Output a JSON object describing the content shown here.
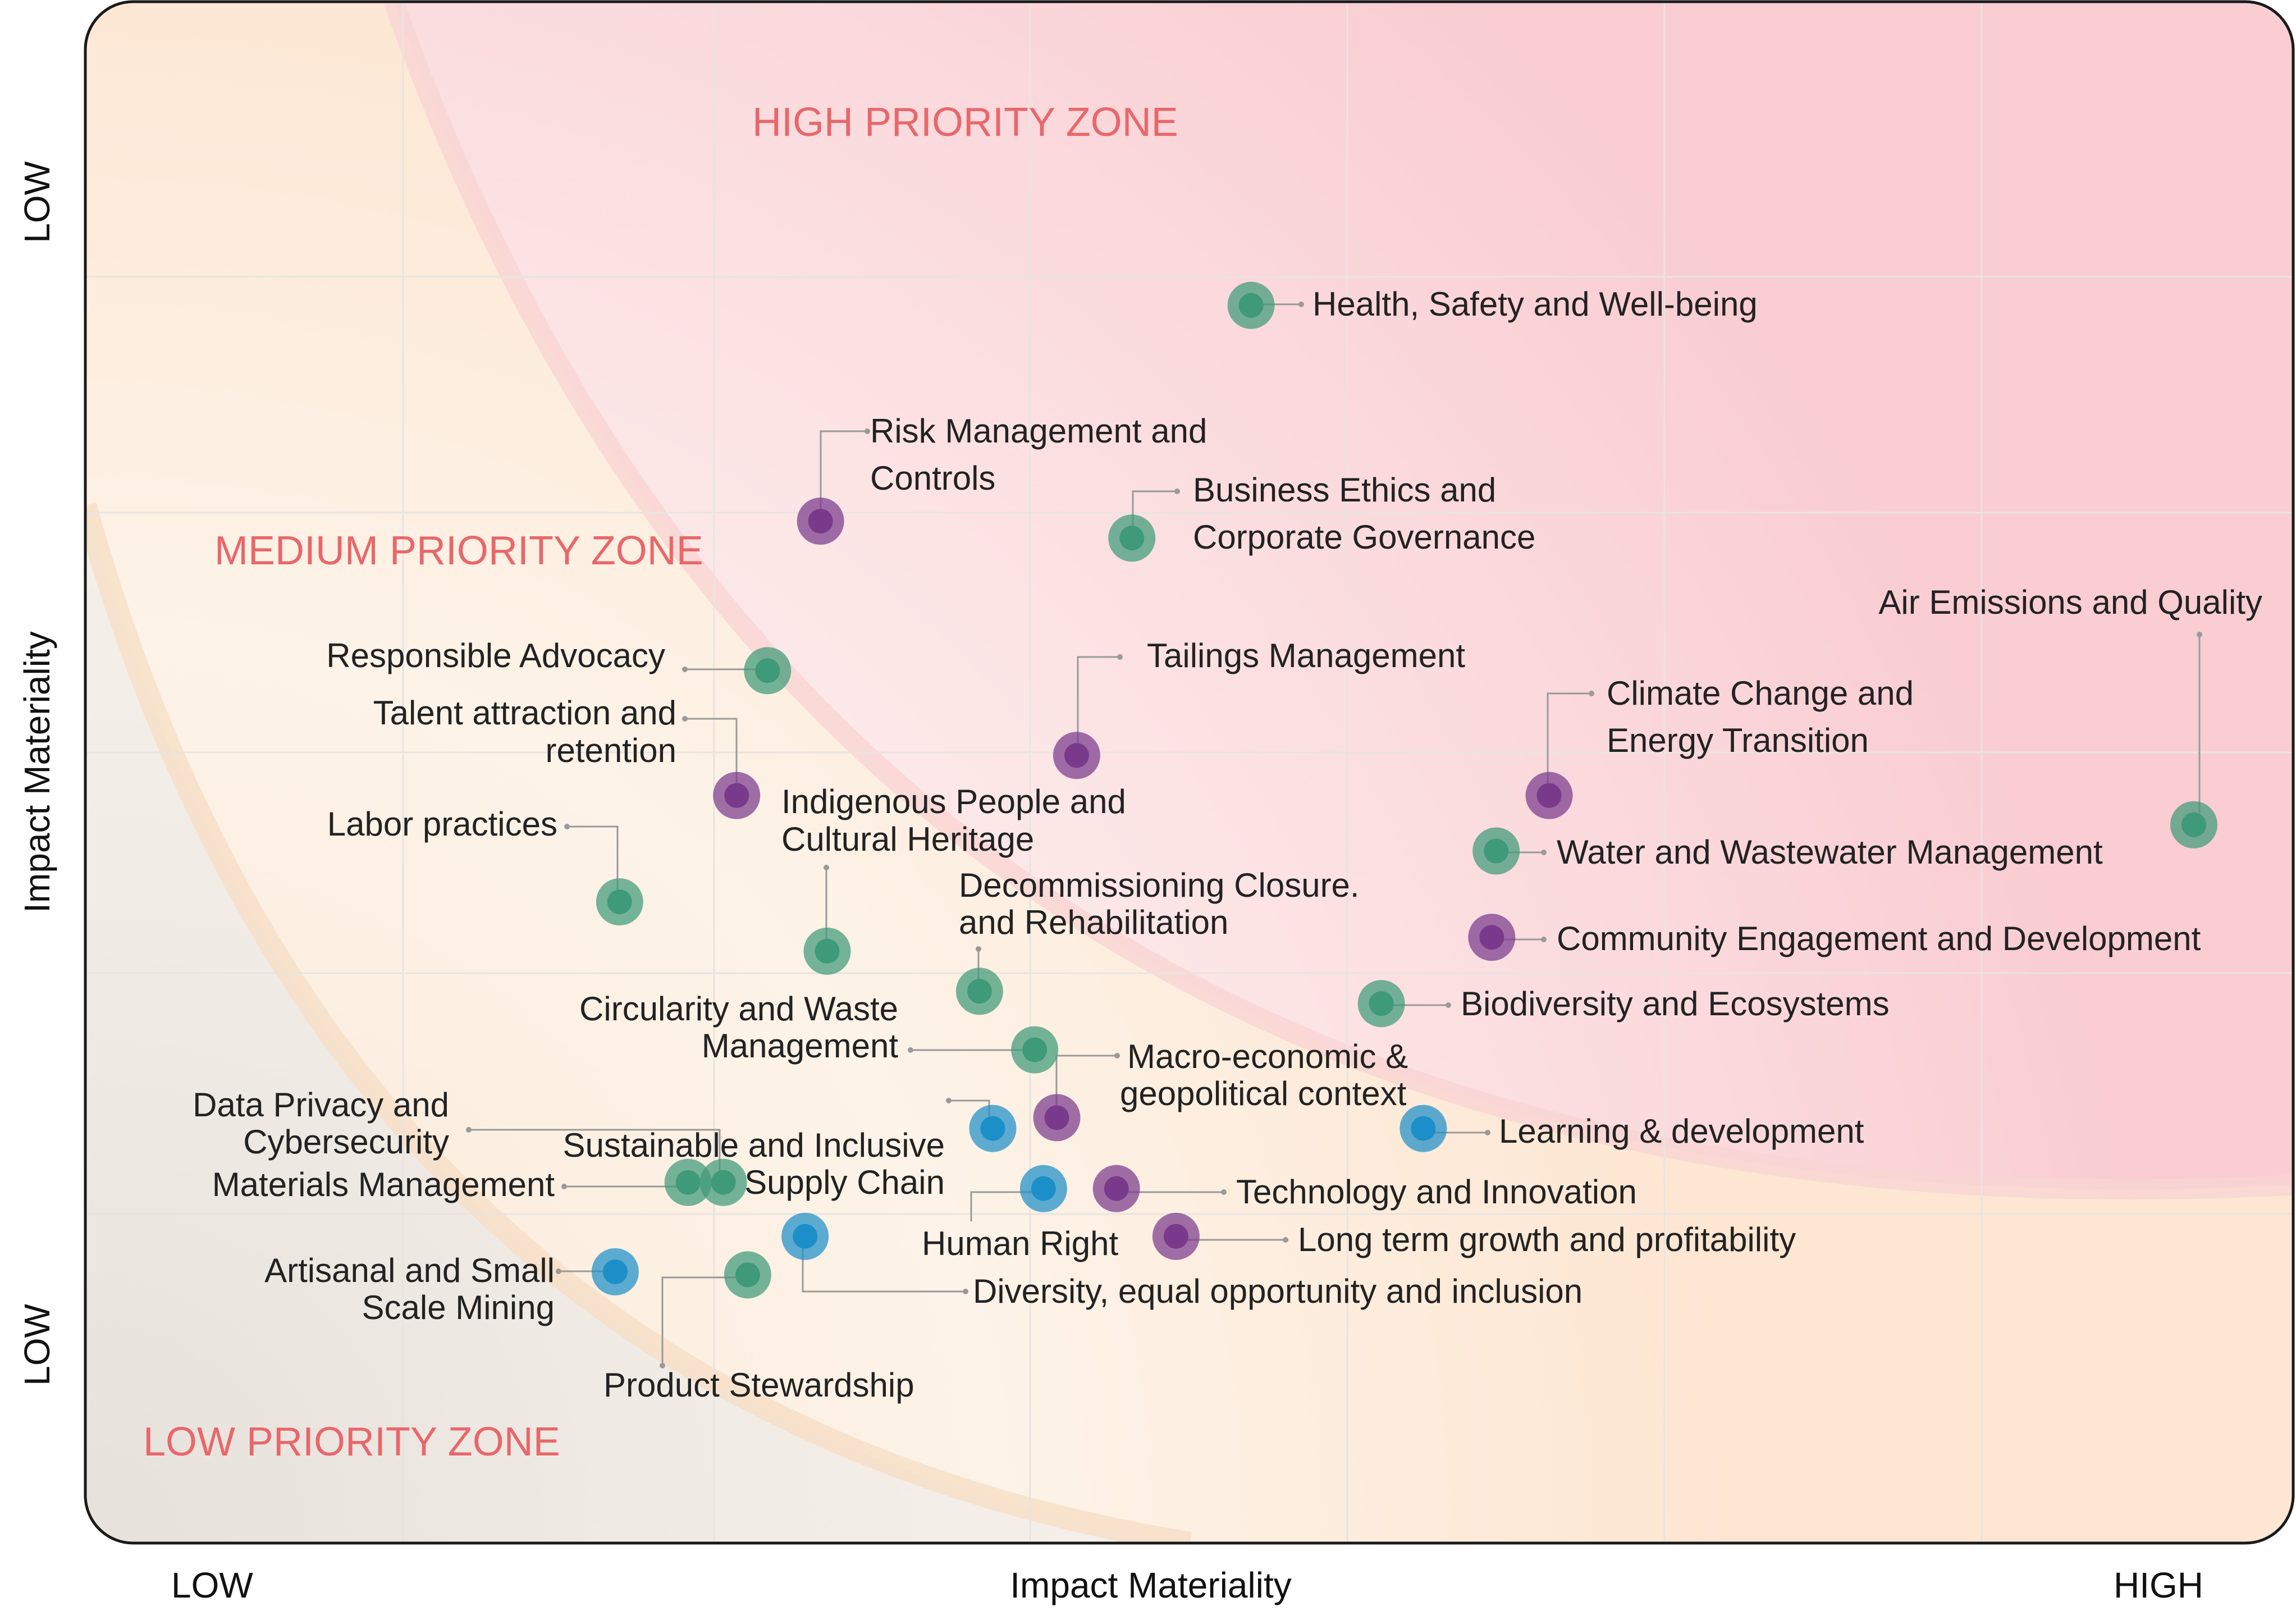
{
  "chart_data": {
    "type": "scatter",
    "title": "",
    "xlabel": "Impact Materiality",
    "ylabel": "Impact Materiality",
    "x_low_label": "LOW",
    "x_high_label": "HIGH",
    "y_top_label": "LOW",
    "y_bottom_label": "LOW",
    "xlim": [
      0,
      100
    ],
    "ylim": [
      0,
      100
    ],
    "grid": true,
    "zones": [
      {
        "name": "HIGH PRIORITY ZONE",
        "color": "#e8676b"
      },
      {
        "name": "MEDIUM PRIORITY ZONE",
        "color": "#e8676b"
      },
      {
        "name": "LOW PRIORITY ZONE",
        "color": "#e8676b"
      }
    ],
    "colors": {
      "green": "#3e9a78",
      "purple": "#7a3a8c",
      "blue": "#1d8fc8",
      "zone_label": "#e8676b",
      "leader": "#999999",
      "text": "#222222"
    },
    "points": [
      {
        "label": "Health, Safety and Well-being",
        "x": 52.8,
        "y": 80.3,
        "color": "green"
      },
      {
        "label": "Risk Management and Controls",
        "x": 33.3,
        "y": 66.3,
        "color": "purple"
      },
      {
        "label": "Business Ethics and Corporate Governance",
        "x": 47.4,
        "y": 65.2,
        "color": "green"
      },
      {
        "label": "Air Emissions and Quality",
        "x": 95.5,
        "y": 46.6,
        "color": "green"
      },
      {
        "label": "Responsible Advocacy",
        "x": 30.9,
        "y": 56.6,
        "color": "green"
      },
      {
        "label": "Tailings Management",
        "x": 44.9,
        "y": 51.1,
        "color": "purple"
      },
      {
        "label": "Climate Change and Energy Transition",
        "x": 66.3,
        "y": 48.5,
        "color": "purple"
      },
      {
        "label": "Talent attraction and retention",
        "x": 29.5,
        "y": 48.5,
        "color": "purple"
      },
      {
        "label": "Indigenous People and Cultural Heritage",
        "x": 33.6,
        "y": 38.4,
        "color": "green"
      },
      {
        "label": "Water and Wastewater Management",
        "x": 63.9,
        "y": 44.9,
        "color": "green"
      },
      {
        "label": "Labor practices",
        "x": 24.2,
        "y": 41.6,
        "color": "green"
      },
      {
        "label": "Community Engagement and Development",
        "x": 63.7,
        "y": 39.3,
        "color": "purple"
      },
      {
        "label": "Decommissioning Closure. and Rehabilitation",
        "x": 40.5,
        "y": 35.8,
        "color": "green"
      },
      {
        "label": "Biodiversity and Ecosystems",
        "x": 58.7,
        "y": 35.0,
        "color": "green"
      },
      {
        "label": "Circularity and Waste Management",
        "x": 43.0,
        "y": 32.0,
        "color": "green"
      },
      {
        "label": "Macro-economic & geopolitical context",
        "x": 44.0,
        "y": 27.6,
        "color": "purple"
      },
      {
        "label": "Data Privacy and Cybersecurity",
        "x": 41.1,
        "y": 26.9,
        "color": "blue"
      },
      {
        "label": "Learning & development",
        "x": 60.6,
        "y": 26.9,
        "color": "blue"
      },
      {
        "label": "Sustainable and Inclusive Supply Chain",
        "x": 28.9,
        "y": 23.4,
        "color": "green"
      },
      {
        "label": "Materials Management",
        "x": 27.3,
        "y": 23.4,
        "color": "green"
      },
      {
        "label": "Human Right",
        "x": 43.4,
        "y": 23.0,
        "color": "blue"
      },
      {
        "label": "Technology and Innovation",
        "x": 46.7,
        "y": 23.0,
        "color": "purple"
      },
      {
        "label": "Long term growth and profitability",
        "x": 49.4,
        "y": 19.9,
        "color": "purple"
      },
      {
        "label": "Diversity, equal opportunity and inclusion",
        "x": 32.6,
        "y": 19.9,
        "color": "blue"
      },
      {
        "label": "Artisanal and Small Scale Mining",
        "x": 24.0,
        "y": 17.6,
        "color": "blue"
      },
      {
        "label": "Product Stewardship",
        "x": 30.0,
        "y": 17.4,
        "color": "green"
      }
    ],
    "annotations": {
      "high_zone": "HIGH PRIORITY ZONE",
      "medium_zone": "MEDIUM PRIORITY ZONE",
      "low_zone": "LOW PRIORITY ZONE",
      "l_health": "Health, Safety and Well-being",
      "l_risk_1": "Risk Management and",
      "l_risk_2": "Controls",
      "l_ethics_1": "Business Ethics and",
      "l_ethics_2": "Corporate Governance",
      "l_air": "Air Emissions and Quality",
      "l_advocacy": "Responsible Advocacy",
      "l_tailings": "Tailings Management",
      "l_climate_1": "Climate Change and",
      "l_climate_2": "Energy Transition",
      "l_talent_1": "Talent attraction and",
      "l_talent_2": "retention",
      "l_indig_1": "Indigenous People and",
      "l_indig_2": "Cultural Heritage",
      "l_water": "Water and Wastewater Management",
      "l_labor": "Labor practices",
      "l_community": "Community Engagement and Development",
      "l_decom_1": "Decommissioning Closure.",
      "l_decom_2": "and Rehabilitation",
      "l_biodiv": "Biodiversity and Ecosystems",
      "l_circ_1": "Circularity and Waste",
      "l_circ_2": "Management",
      "l_macro_1": "Macro-economic &",
      "l_macro_2": "geopolitical context",
      "l_data_1": "Data Privacy and",
      "l_data_2": "Cybersecurity",
      "l_learning": "Learning & development",
      "l_supply_1": "Sustainable and Inclusive",
      "l_supply_2": "Supply Chain",
      "l_materials": "Materials Management",
      "l_tech": "Technology and Innovation",
      "l_human": "Human Right",
      "l_longterm": "Long term growth and profitability",
      "l_artisanal_1": "Artisanal and Small",
      "l_artisanal_2": "Scale Mining",
      "l_diversity": "Diversity, equal opportunity and inclusion",
      "l_product": "Product Stewardship"
    }
  }
}
